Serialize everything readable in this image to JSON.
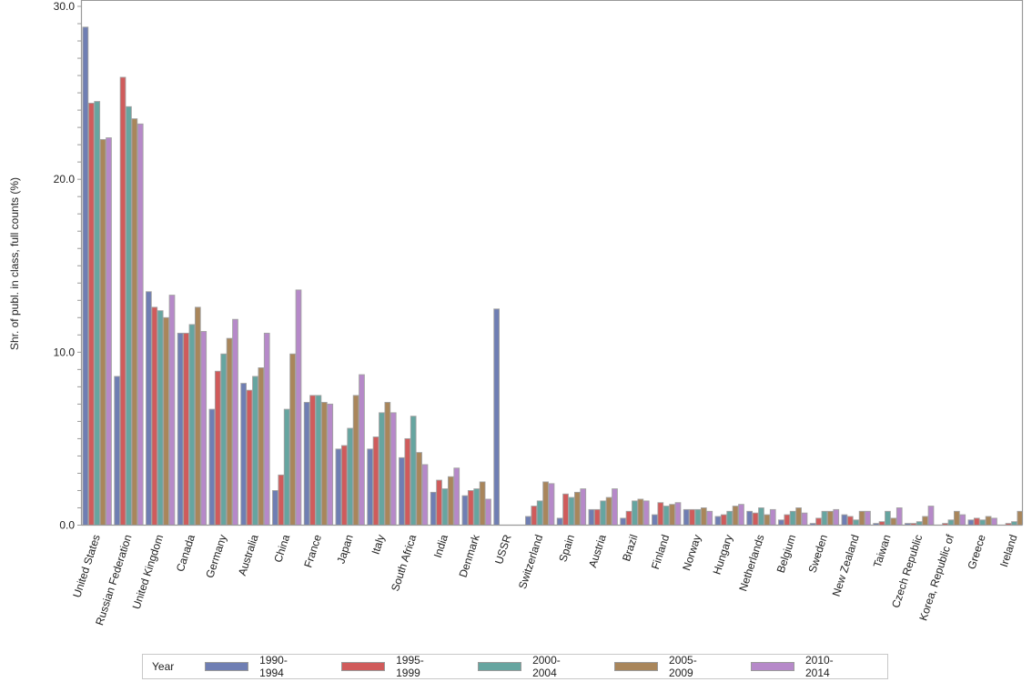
{
  "chart_data": {
    "type": "bar",
    "title": "",
    "xlabel": "",
    "ylabel": "Shr. of publ. in class, full counts (%)",
    "ylim": [
      0,
      30
    ],
    "yticks": [
      "0.0",
      "10.0",
      "20.0",
      "30.0"
    ],
    "grid": false,
    "legend_position": "bottom",
    "legend_title": "Year",
    "categories": [
      "United States",
      "Russian Federation",
      "United Kingdom",
      "Canada",
      "Germany",
      "Australia",
      "China",
      "France",
      "Japan",
      "Italy",
      "South Africa",
      "India",
      "Denmark",
      "USSR",
      "Switzerland",
      "Spain",
      "Austria",
      "Brazil",
      "Finland",
      "Norway",
      "Hungary",
      "Netherlands",
      "Belgium",
      "Sweden",
      "New Zealand",
      "Taiwan",
      "Czech Republic",
      "Korea, Republic of",
      "Greece",
      "Ireland"
    ],
    "series": [
      {
        "name": "1990-1994",
        "color": "#6F7EB3",
        "values": [
          28.8,
          8.6,
          13.5,
          11.1,
          6.7,
          8.2,
          2.0,
          7.1,
          4.4,
          4.4,
          3.9,
          1.9,
          1.7,
          12.5,
          0.5,
          0.4,
          0.9,
          0.4,
          0.6,
          0.9,
          0.5,
          0.8,
          0.3,
          0.1,
          0.6,
          0.1,
          0.1,
          0.0,
          0.3,
          0.0
        ]
      },
      {
        "name": "1995-1999",
        "color": "#D05B5B",
        "values": [
          24.4,
          25.9,
          12.6,
          11.1,
          8.9,
          7.8,
          2.9,
          7.5,
          4.6,
          5.1,
          5.0,
          2.6,
          2.0,
          0.0,
          1.1,
          1.8,
          0.9,
          0.8,
          1.3,
          0.9,
          0.6,
          0.7,
          0.6,
          0.4,
          0.5,
          0.2,
          0.1,
          0.1,
          0.4,
          0.1
        ]
      },
      {
        "name": "2000-2004",
        "color": "#66A5A0",
        "values": [
          24.5,
          24.2,
          12.4,
          11.6,
          9.9,
          8.6,
          6.7,
          7.5,
          5.6,
          6.5,
          6.3,
          2.1,
          2.1,
          0.0,
          1.4,
          1.6,
          1.4,
          1.4,
          1.1,
          0.9,
          0.8,
          1.0,
          0.8,
          0.8,
          0.3,
          0.8,
          0.2,
          0.3,
          0.3,
          0.2
        ]
      },
      {
        "name": "2005-2009",
        "color": "#A9865B",
        "values": [
          22.3,
          23.5,
          12.0,
          12.6,
          10.8,
          9.1,
          9.9,
          7.1,
          7.5,
          7.1,
          4.2,
          2.8,
          2.5,
          0.0,
          2.5,
          1.9,
          1.6,
          1.5,
          1.2,
          1.0,
          1.1,
          0.6,
          1.0,
          0.8,
          0.8,
          0.4,
          0.5,
          0.8,
          0.5,
          0.8
        ]
      },
      {
        "name": "2010-2014",
        "color": "#B689C9",
        "values": [
          22.4,
          23.2,
          13.3,
          11.2,
          11.9,
          11.1,
          13.6,
          7.0,
          8.7,
          6.5,
          3.5,
          3.3,
          1.5,
          0.0,
          2.4,
          2.1,
          2.1,
          1.4,
          1.3,
          0.8,
          1.2,
          0.9,
          0.7,
          0.9,
          0.8,
          1.0,
          1.1,
          0.6,
          0.4,
          0.5
        ]
      }
    ]
  }
}
